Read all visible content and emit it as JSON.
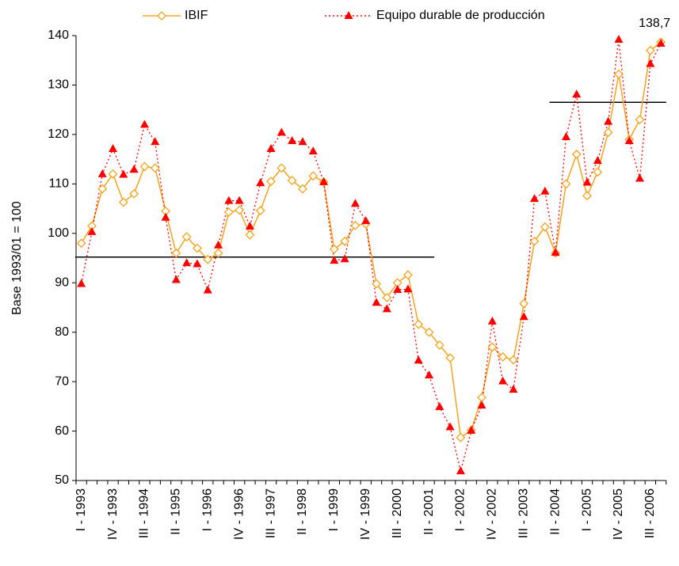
{
  "chart_data": {
    "type": "line",
    "y_label": "Base 1993/01 = 100",
    "categories": [
      "I - 1993",
      null,
      null,
      "IV - 1993",
      null,
      null,
      "III - 1994",
      null,
      null,
      "II - 1995",
      null,
      null,
      "I - 1996",
      null,
      null,
      "IV - 1996",
      null,
      null,
      "III - 1997",
      null,
      null,
      "II - 1998",
      null,
      null,
      "I - 1999",
      null,
      null,
      "IV - 1999",
      null,
      null,
      "III - 2000",
      null,
      null,
      "II - 2001",
      null,
      null,
      "I - 2002",
      null,
      null,
      "IV - 2002",
      null,
      null,
      "III - 2003",
      null,
      null,
      "II - 2004",
      null,
      null,
      "I - 2005",
      null,
      null,
      "IV - 2005",
      null,
      null,
      "III - 2006",
      null
    ],
    "series": [
      {
        "name": "IBIF",
        "color": "#f5a31a",
        "marker": "diamond",
        "dash": false,
        "values": [
          98,
          101.5,
          109,
          112,
          106.3,
          108,
          113.5,
          113.2,
          104.5,
          96,
          99.3,
          97,
          94.7,
          96,
          104.3,
          104.7,
          99.7,
          104.6,
          110.5,
          113.2,
          110.7,
          109,
          111.6,
          110.4,
          96.8,
          98.4,
          101.6,
          101.9,
          89.8,
          87,
          90,
          91.6,
          81.6,
          80,
          77.4,
          74.8,
          58.7,
          60.2,
          66.8,
          77,
          75,
          74.4,
          85.8,
          98.4,
          101.3,
          96,
          110,
          116,
          107.6,
          112.4,
          120.4,
          132.2,
          119,
          123,
          137,
          138.7
        ],
        "value_labels": [
          null,
          null,
          null,
          null,
          null,
          null,
          null,
          null,
          null,
          null,
          null,
          null,
          null,
          null,
          null,
          null,
          null,
          null,
          null,
          null,
          null,
          null,
          null,
          null,
          null,
          null,
          null,
          null,
          null,
          null,
          null,
          null,
          null,
          null,
          null,
          null,
          null,
          null,
          null,
          null,
          null,
          null,
          null,
          null,
          null,
          null,
          null,
          null,
          null,
          null,
          null,
          null,
          null,
          null,
          null,
          "138,7"
        ]
      },
      {
        "name": "Equipo durable de producción",
        "color": "#ff0000",
        "marker": "triangle",
        "dash": true,
        "values": [
          89.8,
          100.3,
          112,
          117.1,
          111.9,
          112.9,
          122,
          118.5,
          103.2,
          90.6,
          94,
          93.8,
          88.5,
          97.6,
          106.6,
          106.6,
          101.4,
          110.2,
          117.1,
          120.4,
          118.7,
          118.5,
          116.6,
          110.4,
          94.5,
          94.8,
          106,
          102.5,
          86,
          84.7,
          88.6,
          88.7,
          74.3,
          71.3,
          64.9,
          60.8,
          51.9,
          60.1,
          65.2,
          82.2,
          70.1,
          68.4,
          83.1,
          107,
          108.5,
          96.1,
          119.5,
          128.1,
          110.3,
          114.7,
          122.6,
          139.2,
          118.7,
          111.1,
          134.3,
          138.4
        ]
      }
    ],
    "reference_lines": [
      {
        "value": 95.2,
        "start": 0,
        "end": 34
      },
      {
        "value": 126.5,
        "start": 45,
        "end": 56
      }
    ],
    "ylim": [
      50,
      140
    ],
    "yticks": [
      50,
      60,
      70,
      80,
      90,
      100,
      110,
      120,
      130,
      140
    ]
  }
}
